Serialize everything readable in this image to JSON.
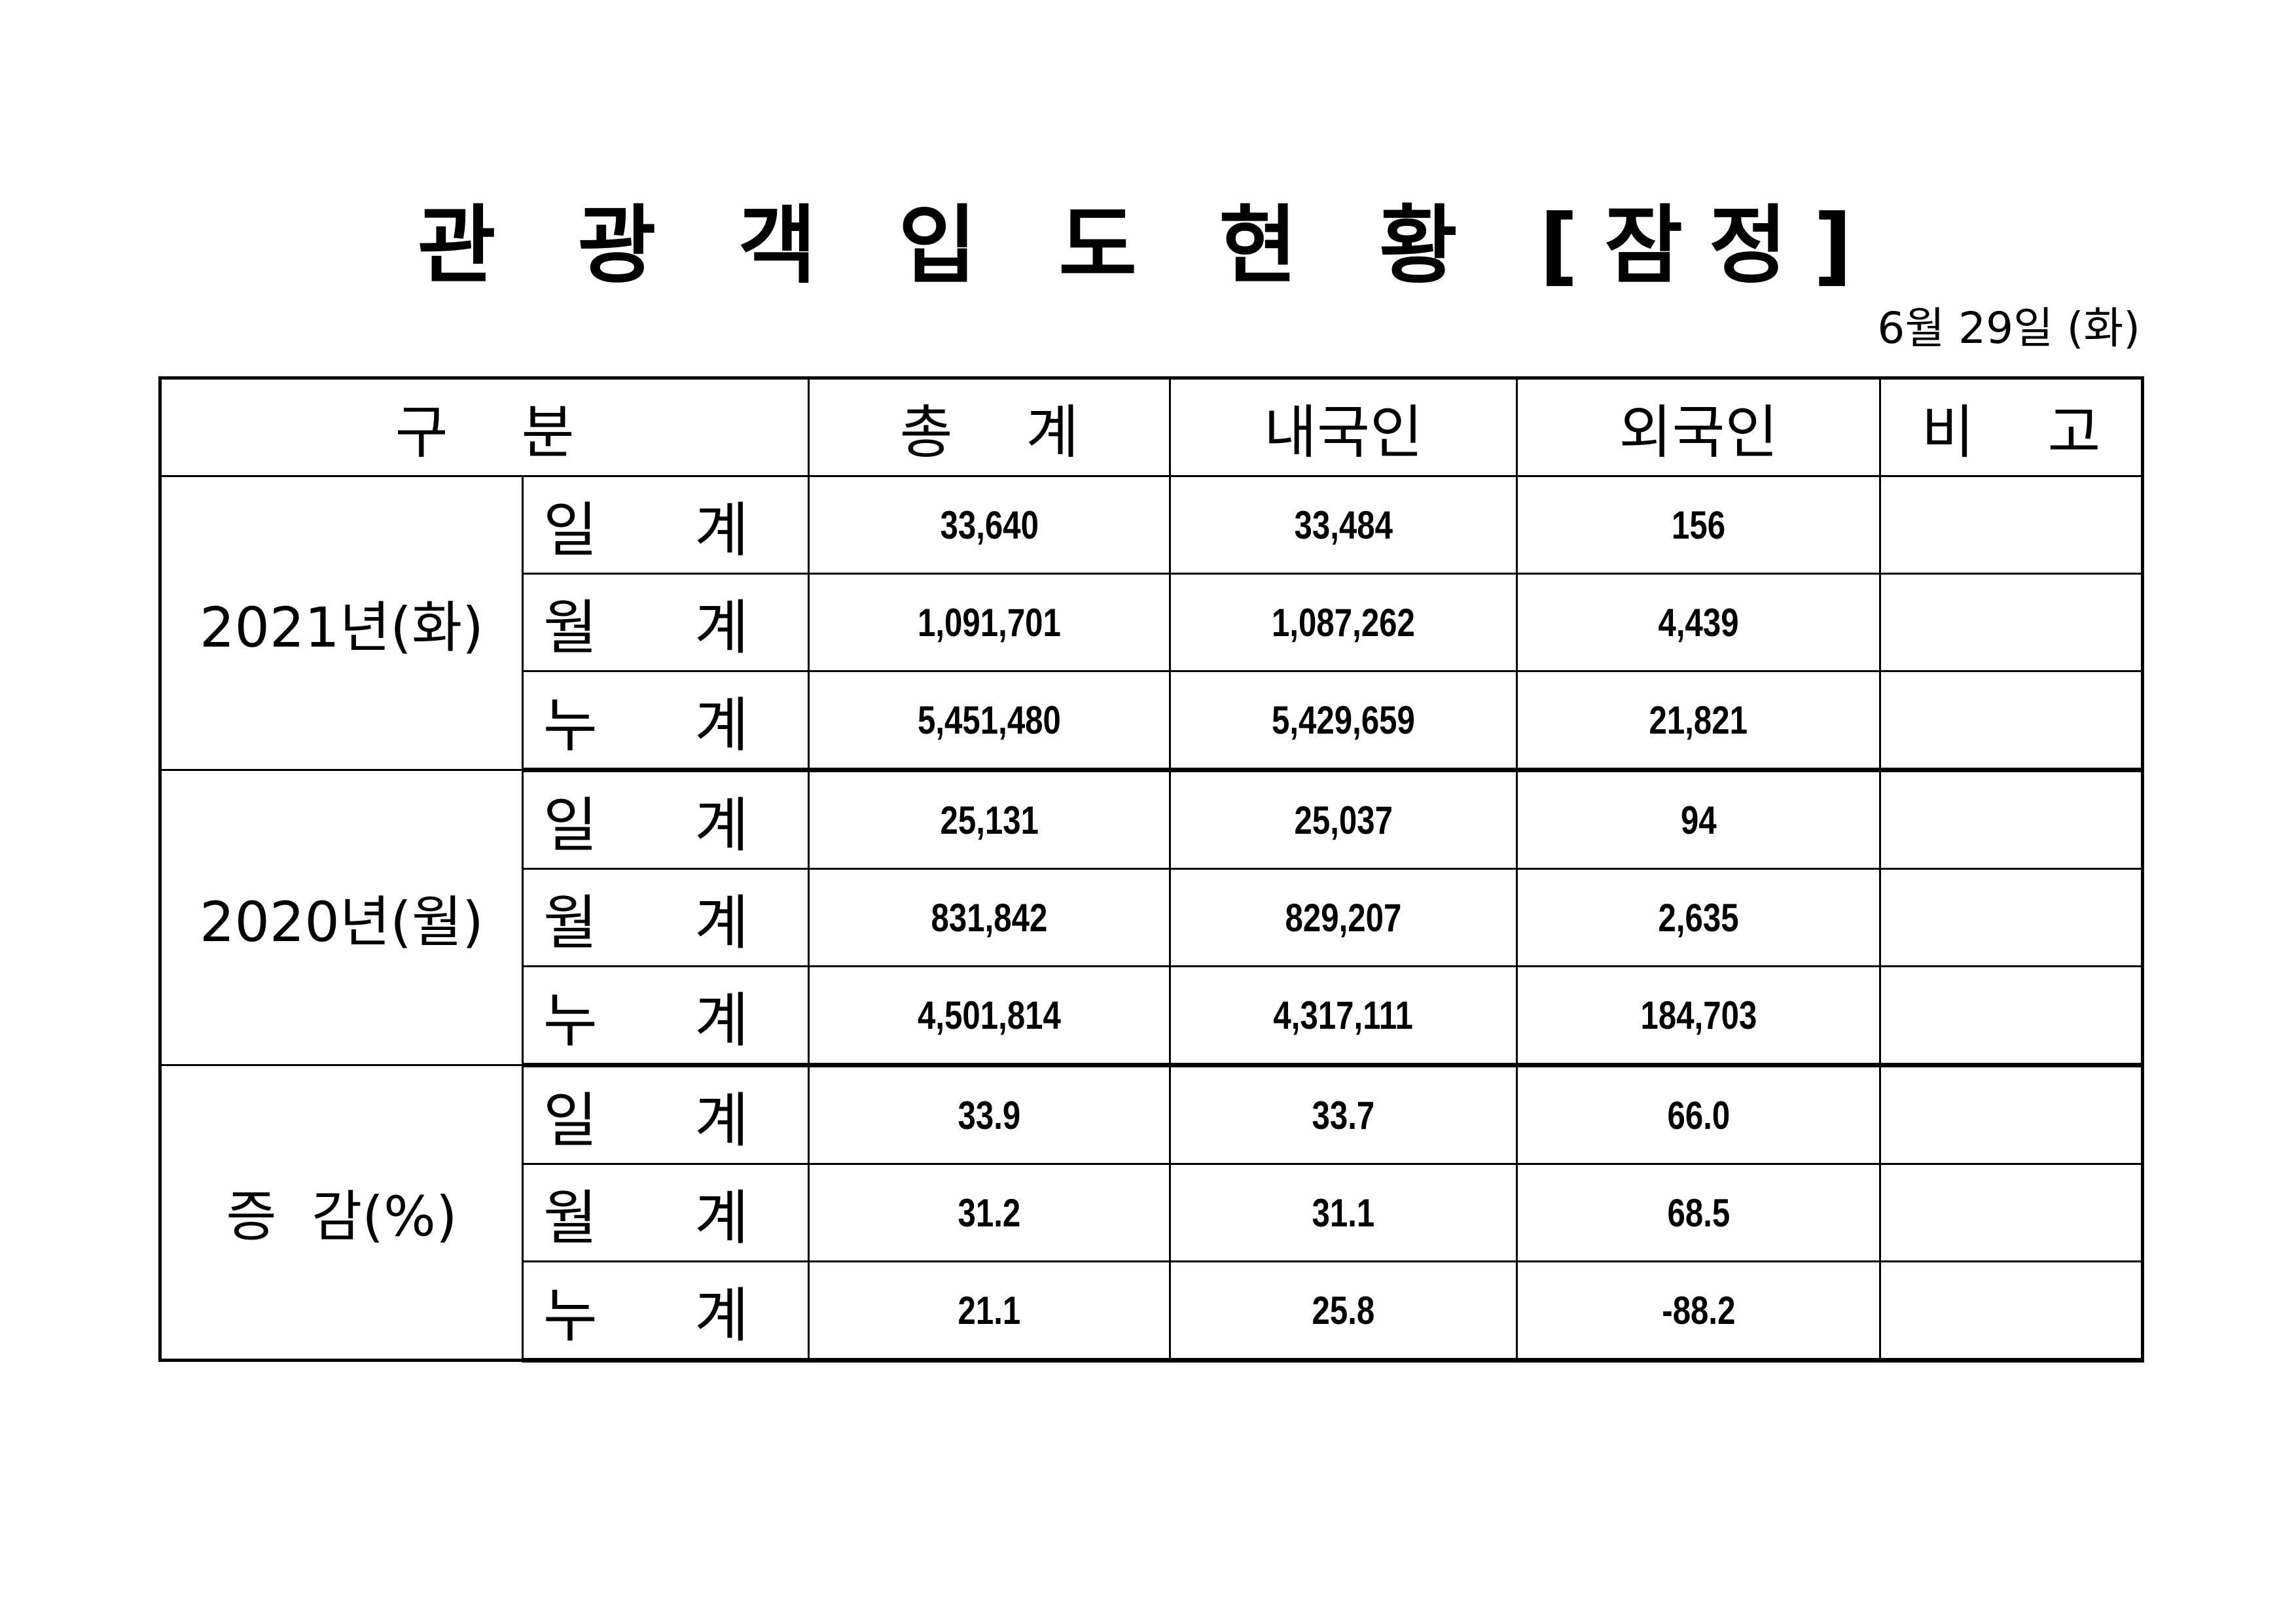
{
  "title": "관 광 객 입 도 현 황 [잠정]",
  "date": "6월  29일  (화)",
  "table": {
    "headers": [
      "구    분",
      "총    계",
      "내국인",
      "외국인",
      "비    고"
    ],
    "groups": [
      {
        "label": "2021년(화)",
        "rows": [
          {
            "sub": "일 계",
            "total": "33,640",
            "domestic": "33,484",
            "foreign": "156",
            "note": ""
          },
          {
            "sub": "월 계",
            "total": "1,091,701",
            "domestic": "1,087,262",
            "foreign": "4,439",
            "note": ""
          },
          {
            "sub": "누 계",
            "total": "5,451,480",
            "domestic": "5,429,659",
            "foreign": "21,821",
            "note": ""
          }
        ]
      },
      {
        "label": "2020년(월)",
        "rows": [
          {
            "sub": "일 계",
            "total": "25,131",
            "domestic": "25,037",
            "foreign": "94",
            "note": ""
          },
          {
            "sub": "월 계",
            "total": "831,842",
            "domestic": "829,207",
            "foreign": "2,635",
            "note": ""
          },
          {
            "sub": "누 계",
            "total": "4,501,814",
            "domestic": "4,317,111",
            "foreign": "184,703",
            "note": ""
          }
        ]
      },
      {
        "label": "증  감(%)",
        "rows": [
          {
            "sub": "일 계",
            "total": "33.9",
            "domestic": "33.7",
            "foreign": "66.0",
            "note": ""
          },
          {
            "sub": "월 계",
            "total": "31.2",
            "domestic": "31.1",
            "foreign": "68.5",
            "note": ""
          },
          {
            "sub": "누 계",
            "total": "21.1",
            "domestic": "25.8",
            "foreign": "-88.2",
            "note": ""
          }
        ]
      }
    ]
  }
}
